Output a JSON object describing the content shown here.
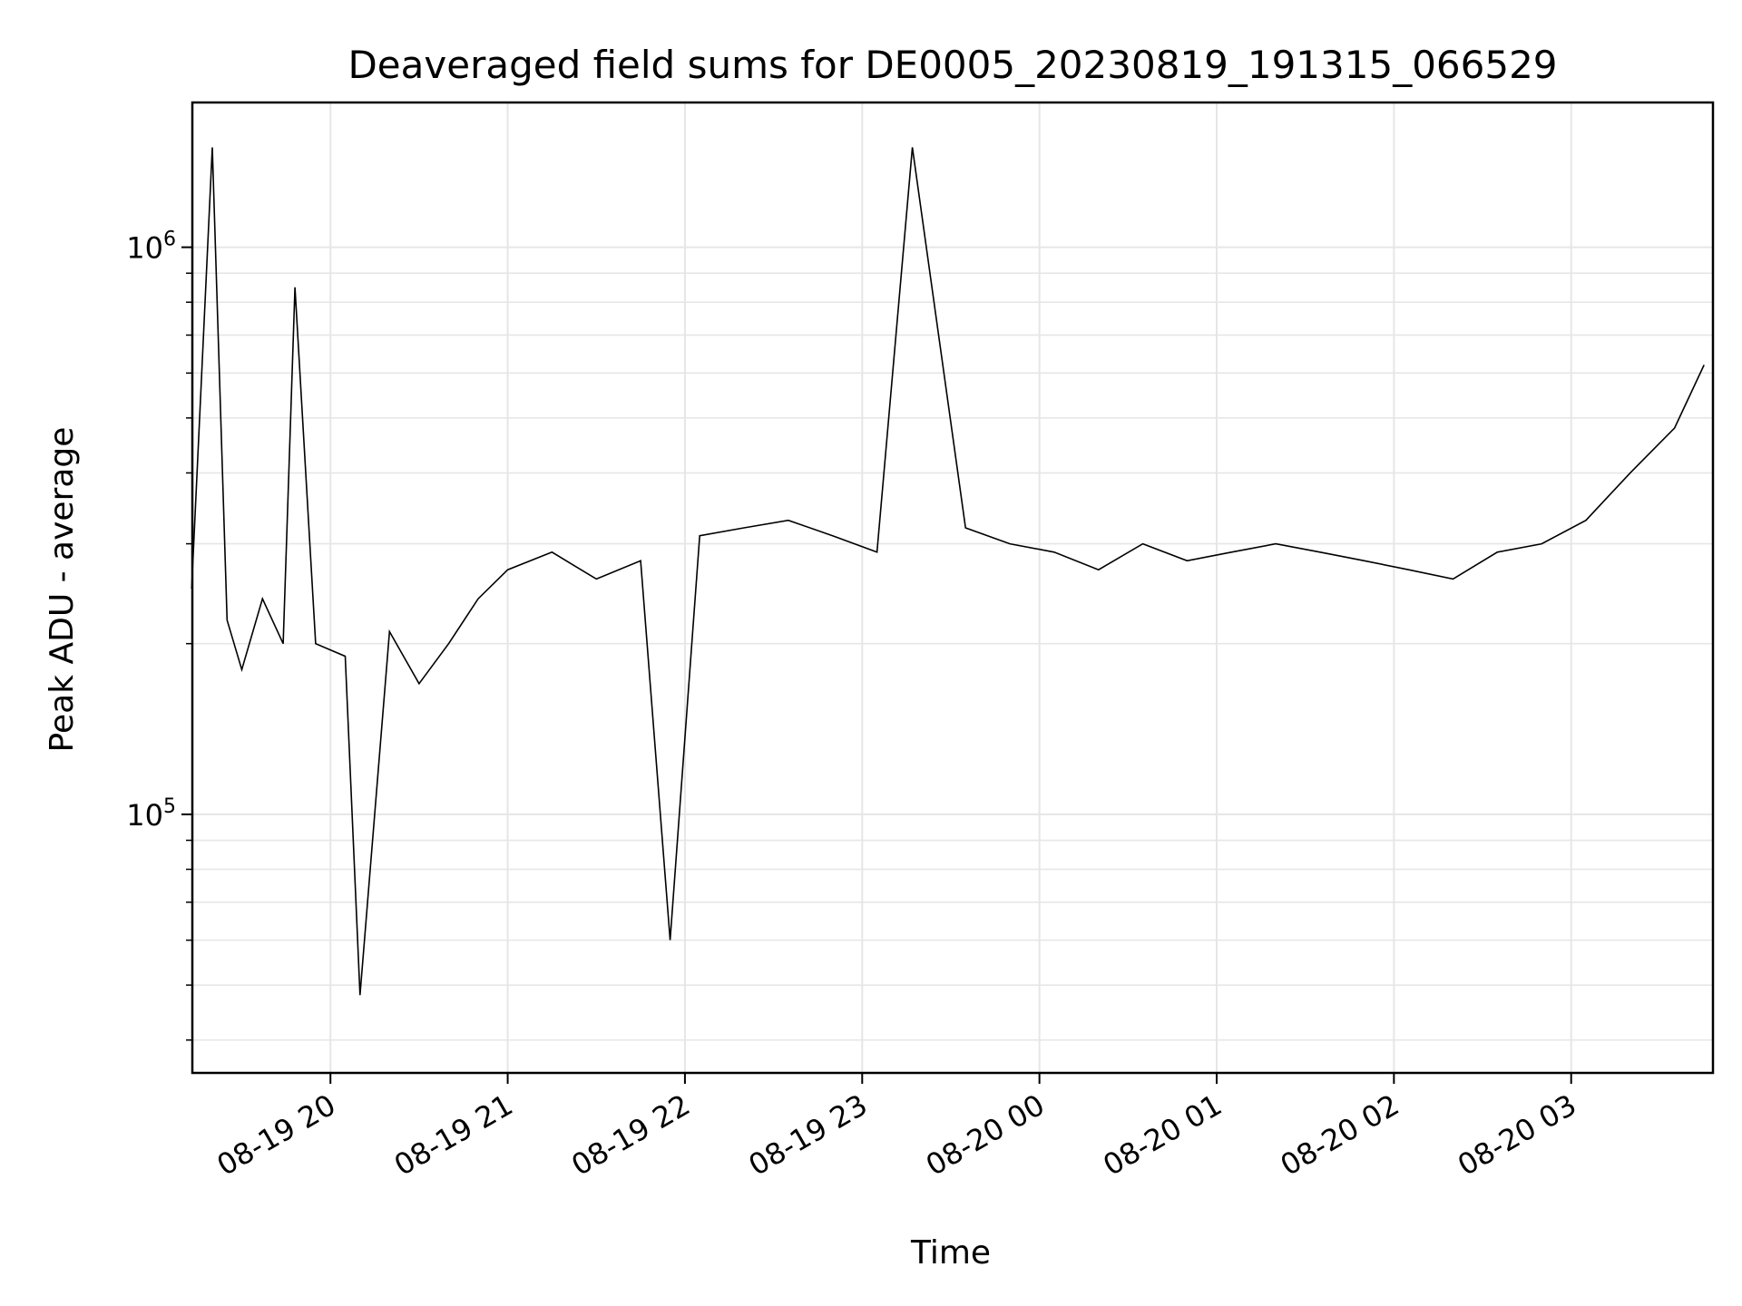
{
  "chart_data": {
    "type": "line",
    "title": "Deaveraged field sums for DE0005_20230819_191315_066529",
    "xlabel": "Time",
    "ylabel": "Peak ADU - average",
    "y_scale": "log",
    "ylim": [
      35000,
      1800000
    ],
    "xlim": [
      "2023-08-19 19:13:15",
      "2023-08-20 03:48:00"
    ],
    "grid": true,
    "line_color": "#000000",
    "grid_color": "#e6e6e6",
    "x_ticks": [
      {
        "time": "2023-08-19 20:00",
        "label": "08-19 20"
      },
      {
        "time": "2023-08-19 21:00",
        "label": "08-19 21"
      },
      {
        "time": "2023-08-19 22:00",
        "label": "08-19 22"
      },
      {
        "time": "2023-08-19 23:00",
        "label": "08-19 23"
      },
      {
        "time": "2023-08-20 00:00",
        "label": "08-20 00"
      },
      {
        "time": "2023-08-20 01:00",
        "label": "08-20 01"
      },
      {
        "time": "2023-08-20 02:00",
        "label": "08-20 02"
      },
      {
        "time": "2023-08-20 03:00",
        "label": "08-20 03"
      }
    ],
    "y_ticks": [
      {
        "value": 100000,
        "base": "10",
        "exp": "5"
      },
      {
        "value": 1000000,
        "base": "10",
        "exp": "6"
      }
    ],
    "series": [
      {
        "x": [
          "2023-08-19 19:13",
          "2023-08-19 19:20",
          "2023-08-19 19:25",
          "2023-08-19 19:30",
          "2023-08-19 19:37",
          "2023-08-19 19:44",
          "2023-08-19 19:48",
          "2023-08-19 19:55",
          "2023-08-19 20:05",
          "2023-08-19 20:10",
          "2023-08-19 20:20",
          "2023-08-19 20:30",
          "2023-08-19 20:40",
          "2023-08-19 20:50",
          "2023-08-19 21:00",
          "2023-08-19 21:15",
          "2023-08-19 21:30",
          "2023-08-19 21:45",
          "2023-08-19 21:55",
          "2023-08-19 22:05",
          "2023-08-19 22:20",
          "2023-08-19 22:35",
          "2023-08-19 22:50",
          "2023-08-19 23:05",
          "2023-08-19 23:17",
          "2023-08-19 23:35",
          "2023-08-19 23:50",
          "2023-08-20 00:05",
          "2023-08-20 00:20",
          "2023-08-20 00:35",
          "2023-08-20 00:50",
          "2023-08-20 01:05",
          "2023-08-20 01:20",
          "2023-08-20 01:35",
          "2023-08-20 01:50",
          "2023-08-20 02:05",
          "2023-08-20 02:20",
          "2023-08-20 02:35",
          "2023-08-20 02:50",
          "2023-08-20 03:05",
          "2023-08-20 03:20",
          "2023-08-20 03:35",
          "2023-08-20 03:45"
        ],
        "y": [
          250000,
          1500000,
          220000,
          180000,
          240000,
          200000,
          850000,
          200000,
          190000,
          48000,
          210000,
          170000,
          200000,
          240000,
          270000,
          290000,
          260000,
          280000,
          60000,
          310000,
          320000,
          330000,
          310000,
          290000,
          1500000,
          320000,
          300000,
          290000,
          270000,
          300000,
          280000,
          290000,
          300000,
          290000,
          280000,
          270000,
          260000,
          290000,
          300000,
          330000,
          400000,
          480000,
          620000
        ]
      }
    ]
  }
}
